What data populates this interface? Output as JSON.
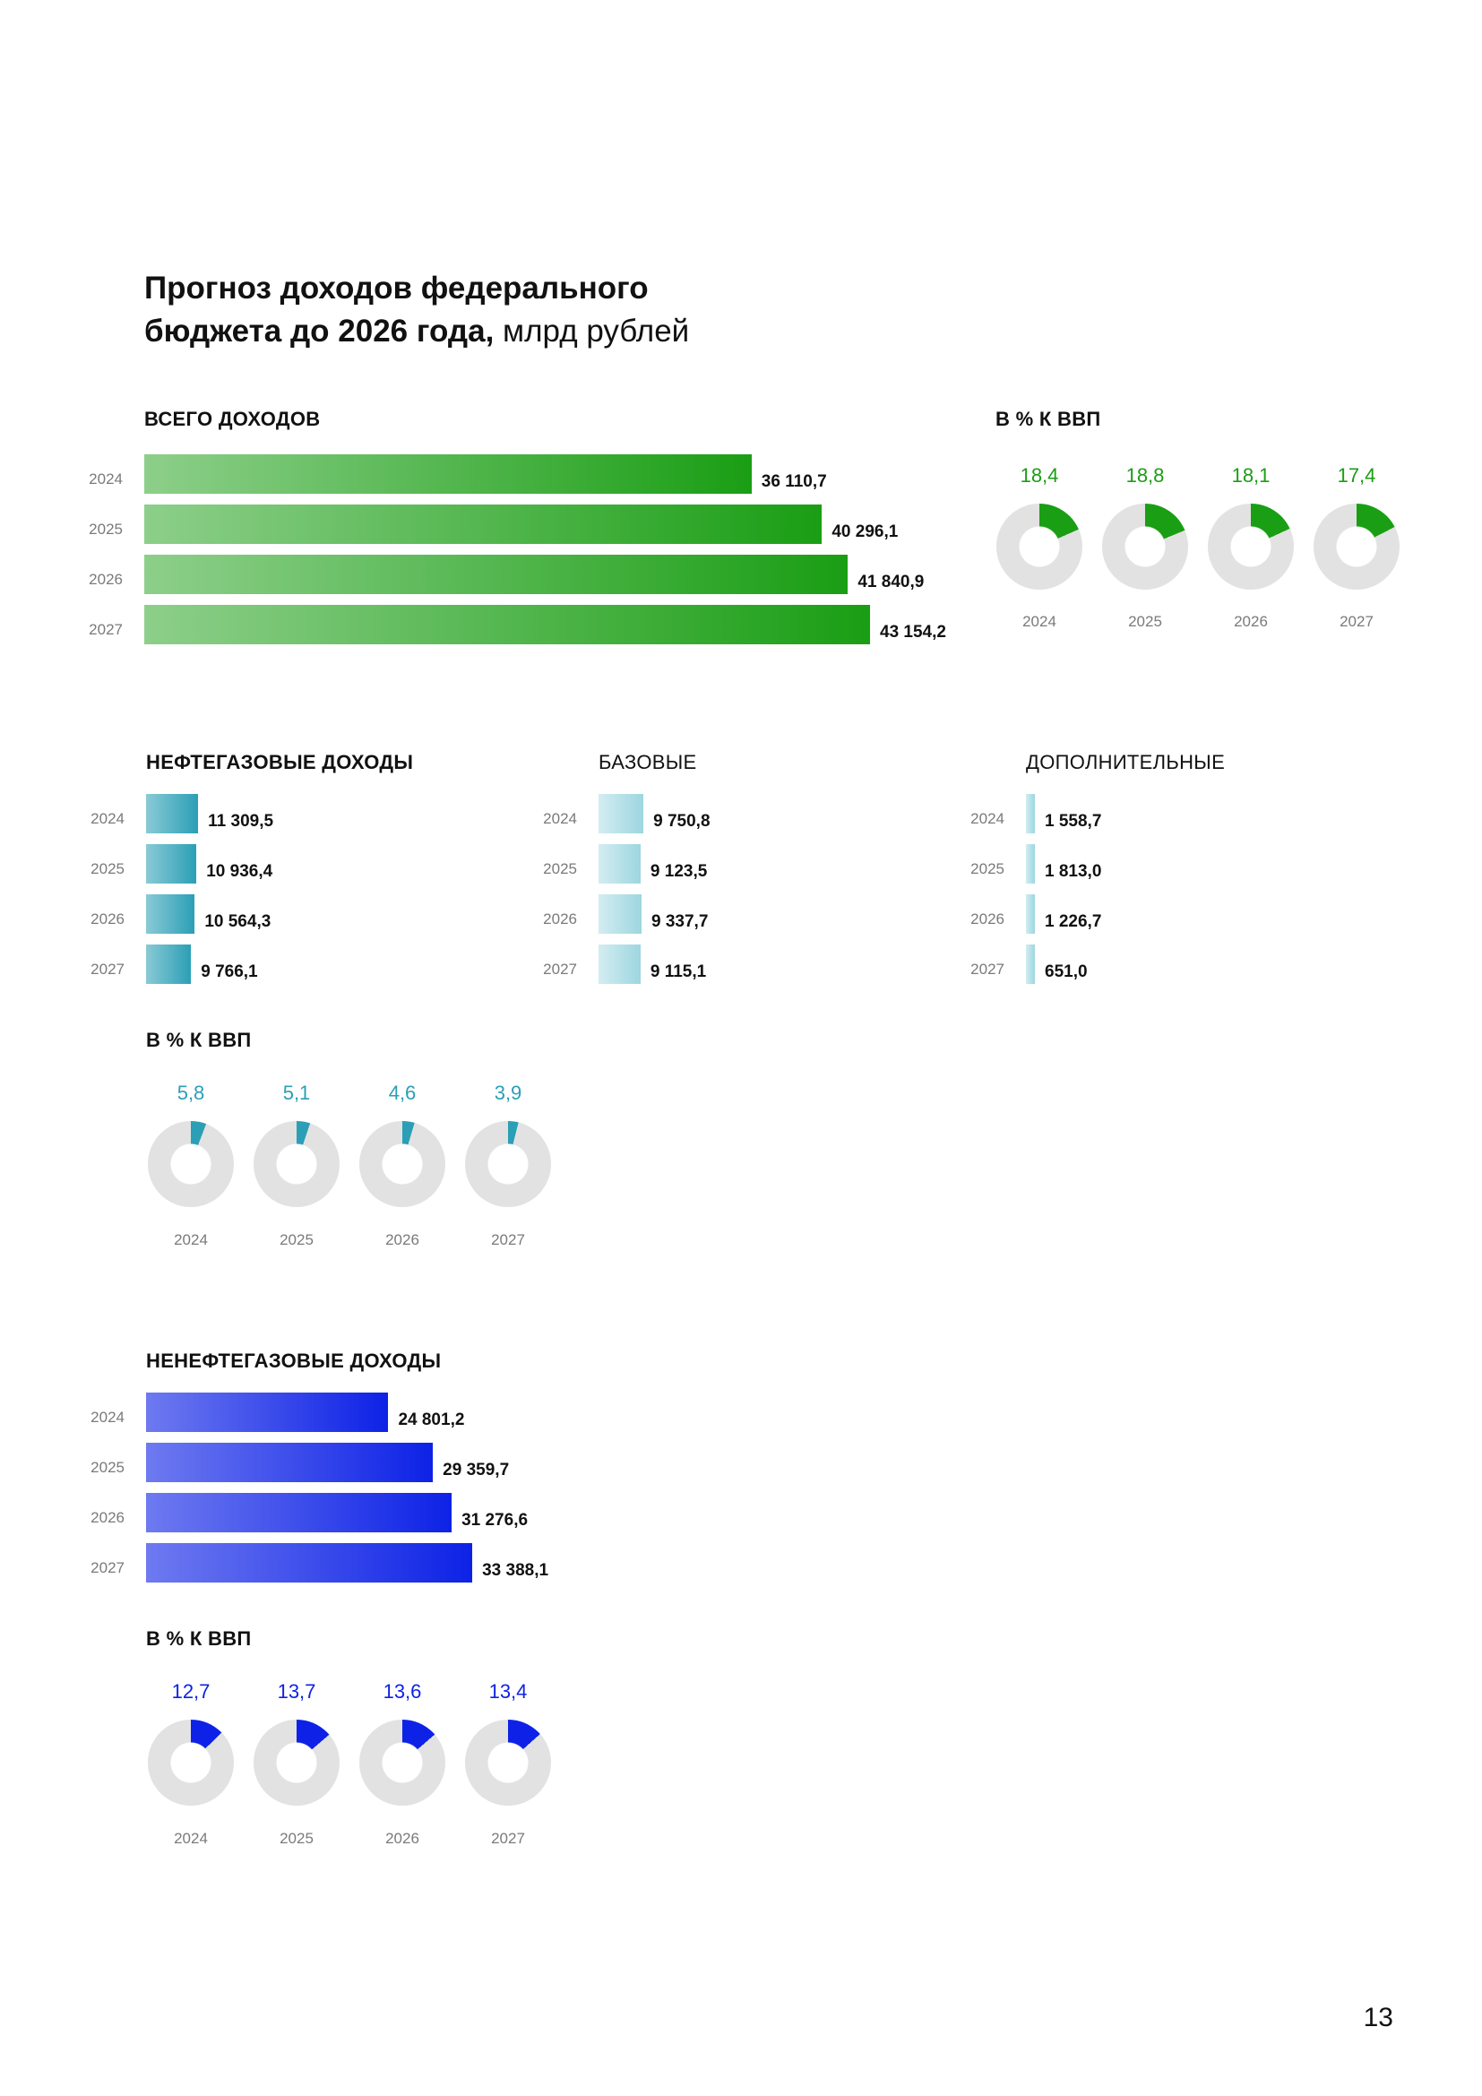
{
  "page": {
    "title_bold_line1": "Прогноз доходов федерального",
    "title_bold_line2": "бюджета до 2026 года,",
    "title_unit": "млрд рублей",
    "page_number": "13"
  },
  "colors": {
    "total": "#1a9e14",
    "oil_gas": "#2b9fb5",
    "base": "#9dd6e0",
    "additional": "#9dd6e0",
    "non_oil_gas": "#0d22e6",
    "donut_track": "#e2e2e2"
  },
  "chart_data": [
    {
      "type": "bar",
      "orientation": "horizontal",
      "title": "ВСЕГО ДОХОДОВ",
      "categories": [
        "2024",
        "2025",
        "2026",
        "2027"
      ],
      "values": [
        36110.7,
        40296.1,
        41840.9,
        43154.2
      ],
      "value_labels": [
        "36 110,7",
        "40 296,1",
        "41 840,9",
        "43 154,2"
      ],
      "xlim": [
        0,
        43154.2
      ]
    },
    {
      "type": "pie",
      "style": "donut",
      "title": "В % К ВВП",
      "categories": [
        "2024",
        "2025",
        "2026",
        "2027"
      ],
      "values": [
        18.4,
        18.8,
        18.1,
        17.4
      ],
      "value_labels": [
        "18,4",
        "18,8",
        "18,1",
        "17,4"
      ]
    },
    {
      "type": "bar",
      "orientation": "horizontal",
      "title": "НЕФТЕГАЗОВЫЕ ДОХОДЫ",
      "categories": [
        "2024",
        "2025",
        "2026",
        "2027"
      ],
      "values": [
        11309.5,
        10936.4,
        10564.3,
        9766.1
      ],
      "value_labels": [
        "11 309,5",
        "10 936,4",
        "10 564,3",
        "9 766,1"
      ],
      "xlim": [
        0,
        43154.2
      ]
    },
    {
      "type": "bar",
      "orientation": "horizontal",
      "title": "БАЗОВЫЕ",
      "categories": [
        "2024",
        "2025",
        "2026",
        "2027"
      ],
      "values": [
        9750.8,
        9123.5,
        9337.7,
        9115.1
      ],
      "value_labels": [
        "9 750,8",
        "9 123,5",
        "9 337,7",
        "9 115,1"
      ],
      "xlim": [
        0,
        43154.2
      ]
    },
    {
      "type": "bar",
      "orientation": "horizontal",
      "title": "ДОПОЛНИТЕЛЬНЫЕ",
      "categories": [
        "2024",
        "2025",
        "2026",
        "2027"
      ],
      "values": [
        1558.7,
        1813.0,
        1226.7,
        651.0
      ],
      "value_labels": [
        "1 558,7",
        "1 813,0",
        "1 226,7",
        "651,0"
      ],
      "xlim": [
        0,
        43154.2
      ]
    },
    {
      "type": "pie",
      "style": "donut",
      "title": "В % К ВВП",
      "categories": [
        "2024",
        "2025",
        "2026",
        "2027"
      ],
      "values": [
        5.8,
        5.1,
        4.6,
        3.9
      ],
      "value_labels": [
        "5,8",
        "5,1",
        "4,6",
        "3,9"
      ]
    },
    {
      "type": "bar",
      "orientation": "horizontal",
      "title": "НЕНЕФТЕГАЗОВЫЕ ДОХОДЫ",
      "categories": [
        "2024",
        "2025",
        "2026",
        "2027"
      ],
      "values": [
        24801.2,
        29359.7,
        31276.6,
        33388.1
      ],
      "value_labels": [
        "24 801,2",
        "29 359,7",
        "31 276,6",
        "33 388,1"
      ],
      "xlim": [
        0,
        43154.2
      ]
    },
    {
      "type": "pie",
      "style": "donut",
      "title": "В % К ВВП",
      "categories": [
        "2024",
        "2025",
        "2026",
        "2027"
      ],
      "values": [
        12.7,
        13.7,
        13.6,
        13.4
      ],
      "value_labels": [
        "12,7",
        "13,7",
        "13,6",
        "13,4"
      ]
    }
  ]
}
